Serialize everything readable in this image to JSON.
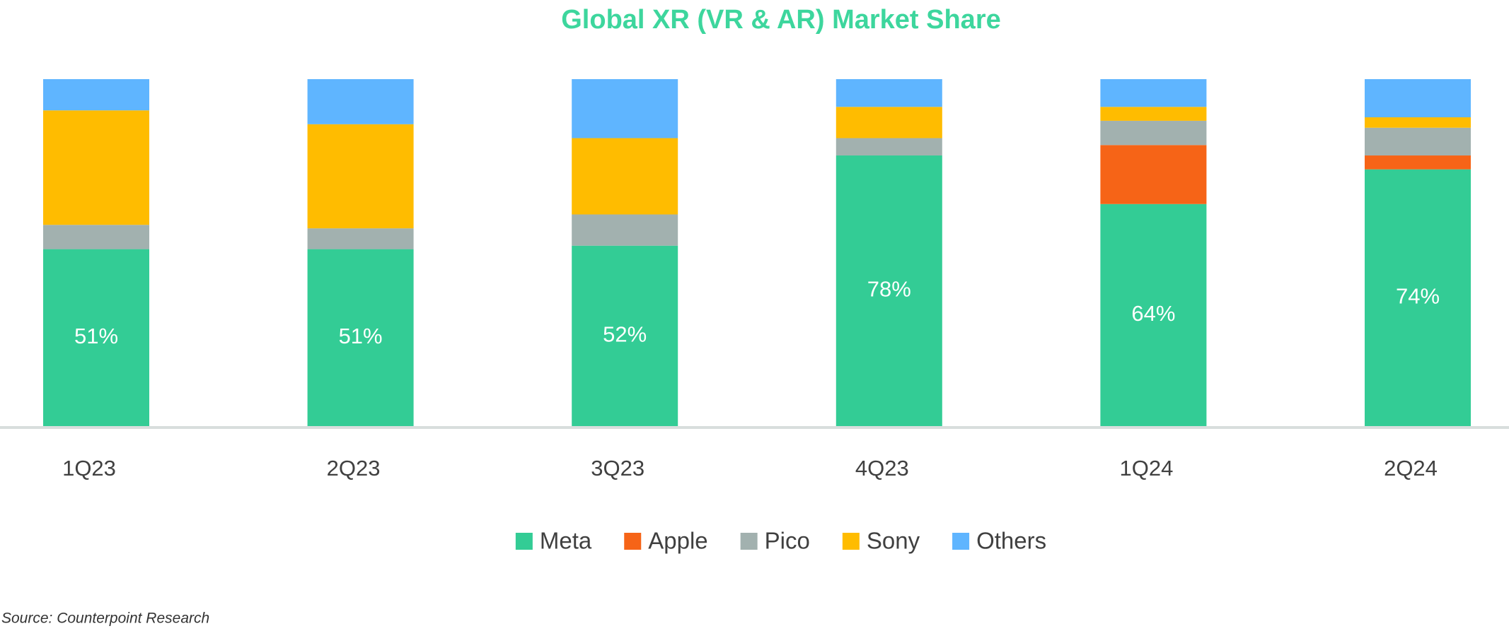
{
  "chart_data": {
    "type": "stacked_bar",
    "title": "Global XR (VR & AR) Market Share",
    "categories": [
      "1Q23",
      "2Q23",
      "3Q23",
      "4Q23",
      "1Q24",
      "2Q24"
    ],
    "series": [
      {
        "name": "Meta",
        "color": "#33cc95",
        "values": [
          51,
          51,
          52,
          78,
          64,
          74
        ],
        "value_labels": [
          "51%",
          "51%",
          "52%",
          "78%",
          "64%",
          "74%"
        ]
      },
      {
        "name": "Apple",
        "color": "#f66417",
        "values": [
          0,
          0,
          0,
          0,
          17,
          4
        ]
      },
      {
        "name": "Pico",
        "color": "#a2b1af",
        "values": [
          7,
          6,
          9,
          5,
          7,
          8
        ]
      },
      {
        "name": "Sony",
        "color": "#ffbc00",
        "values": [
          33,
          30,
          22,
          9,
          4,
          3
        ]
      },
      {
        "name": "Others",
        "color": "#5fb5ff",
        "values": [
          9,
          13,
          17,
          8,
          8,
          11
        ]
      }
    ],
    "ylim": [
      0,
      100
    ],
    "source": "Source: Counterpoint Research"
  }
}
